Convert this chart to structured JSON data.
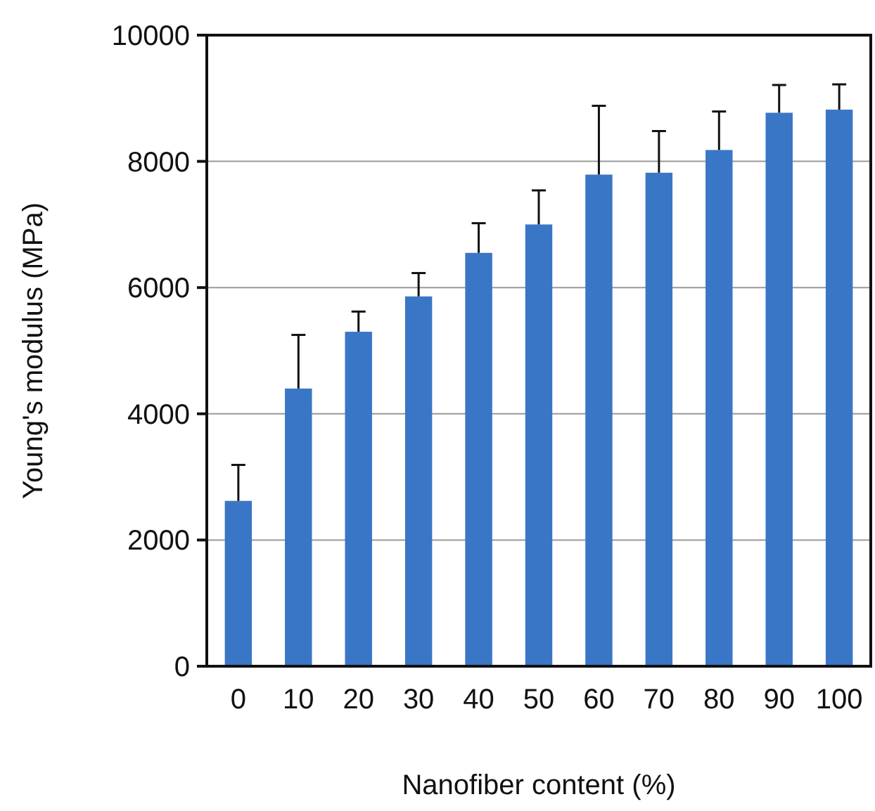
{
  "chart_data": {
    "type": "bar",
    "xlabel": "Nanofiber content (%)",
    "ylabel": "Young's modulus (MPa)",
    "categories": [
      "0",
      "10",
      "20",
      "30",
      "40",
      "50",
      "60",
      "70",
      "80",
      "90",
      "100"
    ],
    "values": [
      2620,
      4400,
      5300,
      5860,
      6550,
      7000,
      7790,
      7820,
      8180,
      8770,
      8820
    ],
    "errors": [
      [
        2620,
        3190
      ],
      [
        4400,
        5250
      ],
      [
        5300,
        5620
      ],
      [
        5860,
        6230
      ],
      [
        6550,
        7020
      ],
      [
        7000,
        7540
      ],
      [
        7790,
        8880
      ],
      [
        7820,
        8480
      ],
      [
        8180,
        8790
      ],
      [
        8770,
        9210
      ],
      [
        8820,
        9220
      ]
    ],
    "color": "#3a76c6",
    "ylim": [
      0,
      10000
    ],
    "yticks": [
      0,
      2000,
      4000,
      6000,
      8000,
      10000
    ],
    "grid": "y"
  }
}
